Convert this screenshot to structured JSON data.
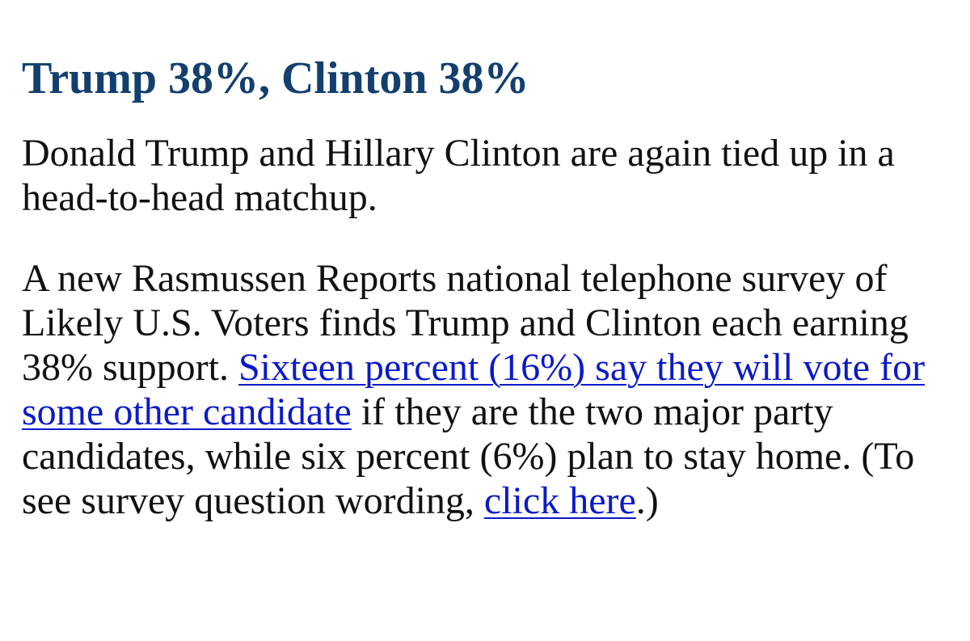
{
  "title": "Trump 38%, Clinton 38%",
  "paragraphs": [
    {
      "segments": [
        {
          "text": "Donald Trump and Hillary Clinton are again tied up in a head-to-head matchup."
        }
      ]
    },
    {
      "segments": [
        {
          "text": "A new Rasmussen Reports national telephone survey of Likely U.S. Voters finds Trump and Clinton each earning 38% support. "
        },
        {
          "link": "Sixteen percent (16%) say they will vote for some other candidate"
        },
        {
          "text": " if they are the two major party candidates, while six percent (6%) plan to stay home. (To see survey question wording, "
        },
        {
          "link": "click here"
        },
        {
          "text": ".)"
        }
      ]
    }
  ]
}
